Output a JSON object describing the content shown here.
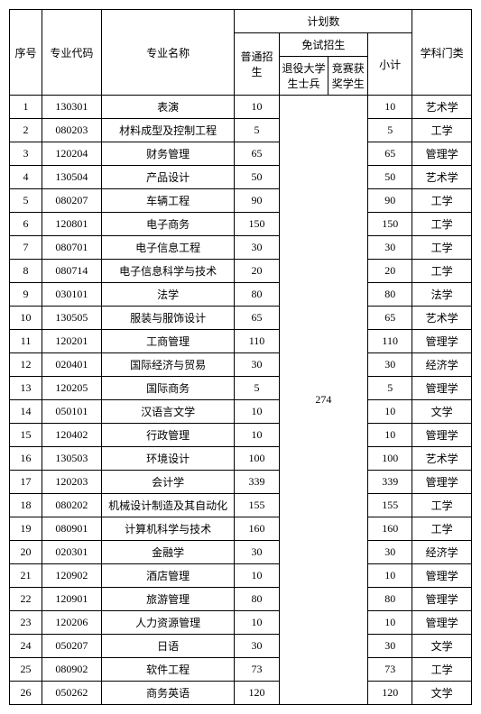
{
  "headers": {
    "seq": "序号",
    "code": "专业代码",
    "name": "专业名称",
    "plan": "计划数",
    "normal": "普通招生",
    "exempt": "免试招生",
    "exempt1": "退役大学生士兵",
    "exempt2": "竞赛获奖学生",
    "subtotal": "小计",
    "category": "学科门类"
  },
  "merged_exempt": "274",
  "rows": [
    {
      "seq": "1",
      "code": "130301",
      "name": "表演",
      "normal": "10",
      "subtotal": "10",
      "category": "艺术学"
    },
    {
      "seq": "2",
      "code": "080203",
      "name": "材料成型及控制工程",
      "normal": "5",
      "subtotal": "5",
      "category": "工学"
    },
    {
      "seq": "3",
      "code": "120204",
      "name": "财务管理",
      "normal": "65",
      "subtotal": "65",
      "category": "管理学"
    },
    {
      "seq": "4",
      "code": "130504",
      "name": "产品设计",
      "normal": "50",
      "subtotal": "50",
      "category": "艺术学"
    },
    {
      "seq": "5",
      "code": "080207",
      "name": "车辆工程",
      "normal": "90",
      "subtotal": "90",
      "category": "工学"
    },
    {
      "seq": "6",
      "code": "120801",
      "name": "电子商务",
      "normal": "150",
      "subtotal": "150",
      "category": "工学"
    },
    {
      "seq": "7",
      "code": "080701",
      "name": "电子信息工程",
      "normal": "30",
      "subtotal": "30",
      "category": "工学"
    },
    {
      "seq": "8",
      "code": "080714",
      "name": "电子信息科学与技术",
      "normal": "20",
      "subtotal": "20",
      "category": "工学"
    },
    {
      "seq": "9",
      "code": "030101",
      "name": "法学",
      "normal": "80",
      "subtotal": "80",
      "category": "法学"
    },
    {
      "seq": "10",
      "code": "130505",
      "name": "服装与服饰设计",
      "normal": "65",
      "subtotal": "65",
      "category": "艺术学"
    },
    {
      "seq": "11",
      "code": "120201",
      "name": "工商管理",
      "normal": "110",
      "subtotal": "110",
      "category": "管理学"
    },
    {
      "seq": "12",
      "code": "020401",
      "name": "国际经济与贸易",
      "normal": "30",
      "subtotal": "30",
      "category": "经济学"
    },
    {
      "seq": "13",
      "code": "120205",
      "name": "国际商务",
      "normal": "5",
      "subtotal": "5",
      "category": "管理学"
    },
    {
      "seq": "14",
      "code": "050101",
      "name": "汉语言文学",
      "normal": "10",
      "subtotal": "10",
      "category": "文学"
    },
    {
      "seq": "15",
      "code": "120402",
      "name": "行政管理",
      "normal": "10",
      "subtotal": "10",
      "category": "管理学"
    },
    {
      "seq": "16",
      "code": "130503",
      "name": "环境设计",
      "normal": "100",
      "subtotal": "100",
      "category": "艺术学"
    },
    {
      "seq": "17",
      "code": "120203",
      "name": "会计学",
      "normal": "339",
      "subtotal": "339",
      "category": "管理学"
    },
    {
      "seq": "18",
      "code": "080202",
      "name": "机械设计制造及其自动化",
      "normal": "155",
      "subtotal": "155",
      "category": "工学"
    },
    {
      "seq": "19",
      "code": "080901",
      "name": "计算机科学与技术",
      "normal": "160",
      "subtotal": "160",
      "category": "工学"
    },
    {
      "seq": "20",
      "code": "020301",
      "name": "金融学",
      "normal": "30",
      "subtotal": "30",
      "category": "经济学"
    },
    {
      "seq": "21",
      "code": "120902",
      "name": "酒店管理",
      "normal": "10",
      "subtotal": "10",
      "category": "管理学"
    },
    {
      "seq": "22",
      "code": "120901",
      "name": "旅游管理",
      "normal": "80",
      "subtotal": "80",
      "category": "管理学"
    },
    {
      "seq": "23",
      "code": "120206",
      "name": "人力资源管理",
      "normal": "10",
      "subtotal": "10",
      "category": "管理学"
    },
    {
      "seq": "24",
      "code": "050207",
      "name": "日语",
      "normal": "30",
      "subtotal": "30",
      "category": "文学"
    },
    {
      "seq": "25",
      "code": "080902",
      "name": "软件工程",
      "normal": "73",
      "subtotal": "73",
      "category": "工学"
    },
    {
      "seq": "26",
      "code": "050262",
      "name": "商务英语",
      "normal": "120",
      "subtotal": "120",
      "category": "文学"
    }
  ]
}
